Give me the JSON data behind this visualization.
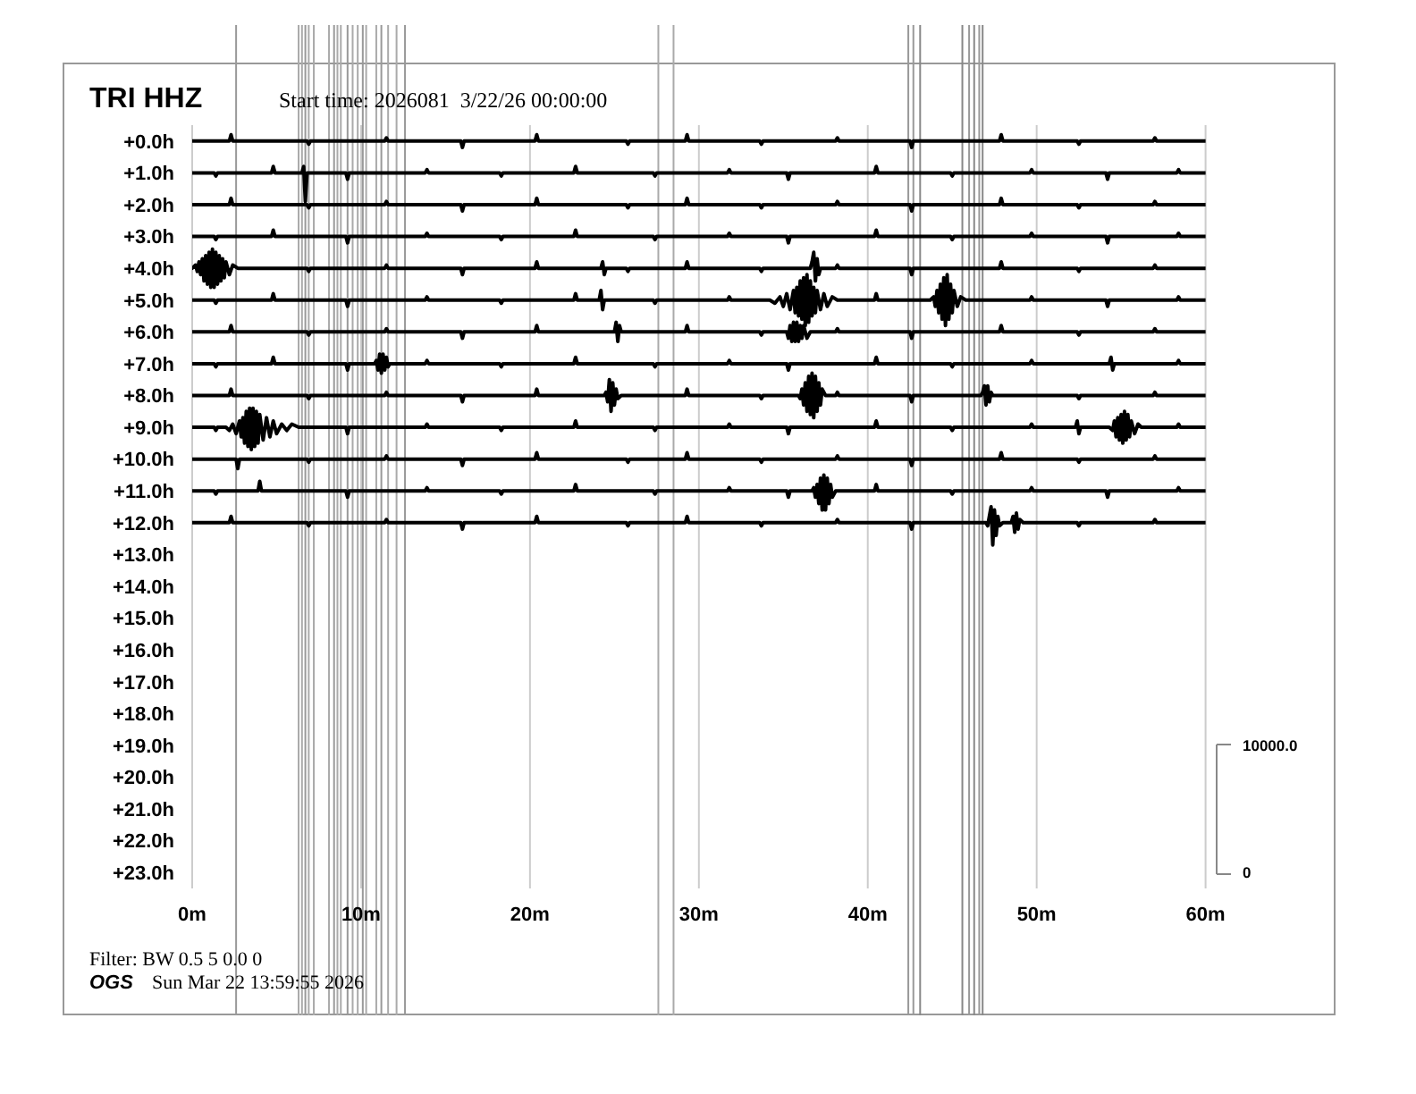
{
  "chart_data": {
    "type": "line",
    "title": "TRI HHZ",
    "subtitle": "Start time: 2026081  3/22/26 00:00:00",
    "xlim": [
      0,
      60
    ],
    "xticks": [
      {
        "value": 0,
        "label": "0m"
      },
      {
        "value": 10,
        "label": "10m"
      },
      {
        "value": 20,
        "label": "20m"
      },
      {
        "value": 30,
        "label": "30m"
      },
      {
        "value": 40,
        "label": "40m"
      },
      {
        "value": 50,
        "label": "50m"
      },
      {
        "value": 60,
        "label": "60m"
      }
    ],
    "ylim": [
      23.5,
      -0.5
    ],
    "yticks": [
      {
        "value": 0,
        "label": "+0.0h"
      },
      {
        "value": 1,
        "label": "+1.0h"
      },
      {
        "value": 2,
        "label": "+2.0h"
      },
      {
        "value": 3,
        "label": "+3.0h"
      },
      {
        "value": 4,
        "label": "+4.0h"
      },
      {
        "value": 5,
        "label": "+5.0h"
      },
      {
        "value": 6,
        "label": "+6.0h"
      },
      {
        "value": 7,
        "label": "+7.0h"
      },
      {
        "value": 8,
        "label": "+8.0h"
      },
      {
        "value": 9,
        "label": "+9.0h"
      },
      {
        "value": 10,
        "label": "+10.0h"
      },
      {
        "value": 11,
        "label": "+11.0h"
      },
      {
        "value": 12,
        "label": "+12.0h"
      },
      {
        "value": 13,
        "label": "+13.0h"
      },
      {
        "value": 14,
        "label": "+14.0h"
      },
      {
        "value": 15,
        "label": "+15.0h"
      },
      {
        "value": 16,
        "label": "+16.0h"
      },
      {
        "value": 17,
        "label": "+17.0h"
      },
      {
        "value": 18,
        "label": "+18.0h"
      },
      {
        "value": 19,
        "label": "+19.0h"
      },
      {
        "value": 20,
        "label": "+20.0h"
      },
      {
        "value": 21,
        "label": "+21.0h"
      },
      {
        "value": 22,
        "label": "+22.0h"
      },
      {
        "value": 23,
        "label": "+23.0h"
      }
    ],
    "grid": "x",
    "series": [
      {
        "color": "#000000",
        "x": [
          0,
          2.2,
          2.3,
          2.4,
          6.8,
          6.9,
          7,
          11.4,
          11.5,
          11.6,
          15.9,
          16,
          16.1,
          20.3,
          20.4,
          20.5,
          25.7,
          25.8,
          25.9,
          29.2,
          29.3,
          29.4,
          33.6,
          33.7,
          33.8,
          38.1,
          38.2,
          38.3,
          42.5,
          42.6,
          42.7,
          47.8,
          47.9,
          48,
          52.4,
          52.5,
          52.6,
          56.9,
          57,
          57.1,
          60
        ],
        "values": [
          0,
          0,
          -0.2,
          0,
          0,
          0.1,
          0,
          0,
          -0.1,
          0,
          0,
          0.2,
          0,
          0,
          -0.2,
          0,
          0,
          0.1,
          0,
          0,
          -0.2,
          0,
          0,
          0.1,
          0,
          0,
          -0.1,
          0,
          0,
          0.2,
          0,
          0,
          -0.2,
          0,
          0,
          0.1,
          0,
          0,
          -0.1,
          0,
          0
        ]
      },
      {
        "color": "#000000",
        "x": [
          0,
          1.3,
          1.4,
          1.5,
          4.7,
          4.8,
          4.9,
          6.5,
          6.6,
          6.7,
          6.8,
          9.1,
          9.2,
          9.3,
          13.8,
          13.9,
          14,
          18.2,
          18.3,
          18.4,
          22.6,
          22.7,
          22.8,
          27.3,
          27.4,
          27.5,
          31.7,
          31.8,
          31.9,
          35.2,
          35.3,
          35.4,
          40.4,
          40.5,
          40.6,
          44.9,
          45,
          45.1,
          49.6,
          49.7,
          49.8,
          54.1,
          54.2,
          54.3,
          58.3,
          58.4,
          58.5,
          60
        ],
        "values": [
          1,
          1,
          1.1,
          1,
          1,
          0.8,
          1,
          1,
          0.8,
          1.9,
          1,
          1,
          1.2,
          1,
          1,
          0.9,
          1,
          1,
          1.1,
          1,
          1,
          0.8,
          1,
          1,
          1.1,
          1,
          1,
          0.9,
          1,
          1,
          1.2,
          1,
          1,
          0.8,
          1,
          1,
          1.1,
          1,
          1,
          0.9,
          1,
          1,
          1.2,
          1,
          1,
          0.9,
          1,
          1
        ]
      },
      {
        "color": "#000000",
        "x": [
          0,
          2.2,
          2.3,
          2.4,
          6.8,
          6.9,
          7,
          11.4,
          11.5,
          11.6,
          15.9,
          16,
          16.1,
          20.3,
          20.4,
          20.5,
          25.7,
          25.8,
          25.9,
          29.2,
          29.3,
          29.4,
          33.6,
          33.7,
          33.8,
          38.1,
          38.2,
          38.3,
          42.5,
          42.6,
          42.7,
          47.8,
          47.9,
          48,
          52.4,
          52.5,
          52.6,
          56.9,
          57,
          57.1,
          60
        ],
        "values": [
          2,
          2,
          1.8,
          2,
          2,
          2.1,
          2,
          2,
          1.9,
          2,
          2,
          2.2,
          2,
          2,
          1.8,
          2,
          2,
          2.1,
          2,
          2,
          1.8,
          2,
          2,
          2.1,
          2,
          2,
          1.9,
          2,
          2,
          2.2,
          2,
          2,
          1.8,
          2,
          2,
          2.1,
          2,
          2,
          1.9,
          2,
          2
        ]
      },
      {
        "color": "#000000",
        "x": [
          0,
          1.3,
          1.4,
          1.5,
          4.7,
          4.8,
          4.9,
          9.1,
          9.2,
          9.3,
          13.8,
          13.9,
          14,
          18.2,
          18.3,
          18.4,
          22.6,
          22.7,
          22.8,
          27.3,
          27.4,
          27.5,
          31.7,
          31.8,
          31.9,
          35.2,
          35.3,
          35.4,
          40.4,
          40.5,
          40.6,
          44.9,
          45,
          45.1,
          49.6,
          49.7,
          49.8,
          54.1,
          54.2,
          54.3,
          58.3,
          58.4,
          58.5,
          60
        ],
        "values": [
          3,
          3,
          3.1,
          3,
          3,
          2.8,
          3,
          3,
          3.2,
          3,
          3,
          2.9,
          3,
          3,
          3.1,
          3,
          3,
          2.8,
          3,
          3,
          3.1,
          3,
          3,
          2.9,
          3,
          3,
          3.2,
          3,
          3,
          2.8,
          3,
          3,
          3.1,
          3,
          3,
          2.9,
          3,
          3,
          3.2,
          3,
          3,
          2.9,
          3,
          3
        ]
      },
      {
        "color": "#000000",
        "x": [
          0,
          0.2,
          0.3,
          0.4,
          0.5,
          0.6,
          0.7,
          0.8,
          0.9,
          1,
          1.1,
          1.2,
          1.3,
          1.4,
          1.5,
          1.6,
          1.7,
          1.8,
          1.9,
          2,
          2.2,
          2.4,
          2.7,
          6.8,
          6.9,
          7,
          11.4,
          11.5,
          11.6,
          15.9,
          16,
          16.1,
          20.3,
          20.4,
          20.5,
          24.2,
          24.3,
          24.4,
          24.5,
          25.7,
          25.8,
          25.9,
          29.2,
          29.3,
          29.4,
          33.6,
          33.7,
          33.8,
          36.6,
          36.7,
          36.8,
          36.9,
          37,
          37.1,
          37.2,
          38.1,
          38.2,
          38.3,
          42.5,
          42.6,
          42.7,
          47.8,
          47.9,
          48,
          52.4,
          52.5,
          52.6,
          56.9,
          57,
          57.1,
          60
        ],
        "values": [
          4,
          3.9,
          4.1,
          3.8,
          4.2,
          3.7,
          4.4,
          3.6,
          4.5,
          3.5,
          4.6,
          3.4,
          4.6,
          3.5,
          4.5,
          3.6,
          4.4,
          3.7,
          4.3,
          3.8,
          4.2,
          3.9,
          4,
          4,
          4.1,
          4,
          4,
          3.9,
          4,
          4,
          4.2,
          4,
          4,
          3.8,
          4,
          4,
          3.8,
          4.2,
          4,
          4,
          4.1,
          4,
          4,
          3.8,
          4,
          4,
          4.1,
          4,
          4,
          3.8,
          3.5,
          4.4,
          3.7,
          4.2,
          4,
          4,
          3.9,
          4,
          4,
          4.2,
          4,
          4,
          3.8,
          4,
          4,
          4.1,
          4,
          4,
          3.9,
          4,
          4
        ]
      },
      {
        "color": "#000000",
        "x": [
          0,
          1.3,
          1.4,
          1.5,
          4.7,
          4.8,
          4.9,
          9.1,
          9.2,
          9.3,
          13.8,
          13.9,
          14,
          18.2,
          18.3,
          18.4,
          22.6,
          22.7,
          22.8,
          24.1,
          24.2,
          24.3,
          24.4,
          27.3,
          27.4,
          27.5,
          31.7,
          31.8,
          31.9,
          34.2,
          34.5,
          34.8,
          35,
          35.2,
          35.4,
          35.6,
          35.7,
          35.8,
          35.9,
          36,
          36.1,
          36.2,
          36.3,
          36.4,
          36.5,
          36.6,
          36.7,
          36.8,
          36.9,
          37,
          37.2,
          37.4,
          37.6,
          37.9,
          38.2,
          40.4,
          40.5,
          40.6,
          43.7,
          43.9,
          44,
          44.1,
          44.2,
          44.3,
          44.4,
          44.5,
          44.6,
          44.7,
          44.8,
          44.9,
          45,
          45.1,
          45.3,
          45.5,
          45.8,
          49.6,
          49.7,
          49.8,
          54.1,
          54.2,
          54.3,
          58.3,
          58.4,
          58.5,
          60
        ],
        "values": [
          5,
          5,
          5.1,
          5,
          5,
          4.8,
          5,
          5,
          5.2,
          5,
          5,
          4.9,
          5,
          5,
          5.1,
          5,
          5,
          4.8,
          5,
          5,
          4.7,
          5.3,
          5,
          5,
          5.1,
          5,
          5,
          4.9,
          5,
          5,
          5.1,
          4.9,
          5.2,
          4.8,
          5.3,
          4.7,
          5.4,
          4.6,
          5.5,
          4.4,
          5.6,
          4.3,
          5.8,
          4.2,
          5.7,
          4.4,
          5.5,
          4.6,
          5.4,
          4.7,
          5.3,
          4.8,
          5.2,
          4.9,
          5,
          5,
          4.8,
          5,
          5,
          4.9,
          5.2,
          4.7,
          5.4,
          4.5,
          5.6,
          4.3,
          5.8,
          4.2,
          5.6,
          4.5,
          5.4,
          4.7,
          5.2,
          4.9,
          5,
          5,
          4.9,
          5,
          5,
          5.2,
          5,
          5,
          4.9,
          5,
          5
        ]
      },
      {
        "color": "#000000",
        "x": [
          0,
          2.2,
          2.3,
          2.4,
          6.8,
          6.9,
          7,
          11.4,
          11.5,
          11.6,
          15.9,
          16,
          16.1,
          20.3,
          20.4,
          20.5,
          25,
          25.1,
          25.2,
          25.3,
          25.4,
          29.2,
          29.3,
          29.4,
          33.6,
          33.7,
          33.8,
          35.2,
          35.3,
          35.4,
          35.5,
          35.6,
          35.7,
          35.8,
          35.9,
          36,
          36.1,
          36.2,
          36.4,
          36.6,
          38.1,
          38.2,
          38.3,
          42.5,
          42.6,
          42.7,
          47.8,
          47.9,
          48,
          52.4,
          52.5,
          52.6,
          56.9,
          57,
          57.1,
          60
        ],
        "values": [
          6,
          6,
          5.8,
          6,
          6,
          6.1,
          6,
          6,
          5.9,
          6,
          6,
          6.2,
          6,
          6,
          5.8,
          6,
          6,
          5.7,
          6.3,
          5.8,
          6,
          6,
          5.8,
          6,
          6,
          6.1,
          6,
          6,
          6.2,
          5.8,
          6.3,
          5.7,
          6.3,
          5.7,
          6.3,
          5.8,
          6.2,
          5.8,
          6.2,
          6,
          6,
          5.9,
          6,
          6,
          6.2,
          6,
          6,
          5.8,
          6,
          6,
          6.1,
          6,
          6,
          5.9,
          6,
          6
        ]
      },
      {
        "color": "#000000",
        "x": [
          0,
          1.3,
          1.4,
          1.5,
          4.7,
          4.8,
          4.9,
          9.1,
          9.2,
          9.3,
          10.8,
          10.9,
          11,
          11.1,
          11.2,
          11.3,
          11.4,
          11.5,
          11.6,
          11.7,
          13.8,
          13.9,
          14,
          18.2,
          18.3,
          18.4,
          22.6,
          22.7,
          22.8,
          27.3,
          27.4,
          27.5,
          31.7,
          31.8,
          31.9,
          35.2,
          35.3,
          35.4,
          40.4,
          40.5,
          40.6,
          44.9,
          45,
          45.1,
          49.6,
          49.7,
          49.8,
          54.3,
          54.4,
          54.5,
          54.6,
          58.3,
          58.4,
          58.5,
          60
        ],
        "values": [
          7,
          7,
          7.1,
          7,
          7,
          6.8,
          7,
          7,
          7.2,
          7,
          7,
          6.9,
          7.2,
          6.7,
          7.3,
          6.7,
          7.2,
          6.8,
          7.1,
          7,
          7,
          6.9,
          7,
          7,
          7.1,
          7,
          7,
          6.8,
          7,
          7,
          7.1,
          7,
          7,
          6.9,
          7,
          7,
          7.2,
          7,
          7,
          6.8,
          7,
          7,
          7.1,
          7,
          7,
          6.9,
          7,
          7,
          6.8,
          7.2,
          7,
          7,
          6.9,
          7,
          7
        ]
      },
      {
        "color": "#000000",
        "x": [
          0,
          2.2,
          2.3,
          2.4,
          6.8,
          6.9,
          7,
          11.4,
          11.5,
          11.6,
          15.9,
          16,
          16.1,
          20.3,
          20.4,
          20.5,
          24.4,
          24.5,
          24.6,
          24.7,
          24.8,
          24.9,
          25,
          25.1,
          25.2,
          25.4,
          29.2,
          29.3,
          29.4,
          33.6,
          33.7,
          33.8,
          35.9,
          36,
          36.1,
          36.2,
          36.3,
          36.4,
          36.5,
          36.6,
          36.7,
          36.8,
          36.9,
          37,
          37.1,
          37.2,
          37.3,
          37.5,
          38.1,
          38.2,
          38.3,
          42.5,
          42.6,
          42.7,
          46.7,
          46.8,
          46.9,
          47,
          47.1,
          47.2,
          47.3,
          47.4,
          52.4,
          52.5,
          52.6,
          56.9,
          57,
          57.1,
          60
        ],
        "values": [
          8,
          8,
          7.8,
          8,
          8,
          8.1,
          8,
          8,
          7.9,
          8,
          8,
          8.2,
          8,
          8,
          7.8,
          8,
          8,
          7.9,
          8.2,
          7.5,
          8.5,
          7.6,
          8.3,
          7.8,
          8.1,
          8,
          8,
          7.8,
          8,
          8,
          8.1,
          8,
          8,
          8.1,
          7.8,
          8.3,
          7.6,
          8.5,
          7.4,
          8.6,
          7.3,
          8.7,
          7.4,
          8.5,
          7.6,
          8.3,
          7.8,
          8,
          8,
          7.9,
          8,
          8,
          8.2,
          8,
          8,
          7.9,
          7.7,
          8.3,
          7.7,
          8.2,
          7.9,
          8,
          8,
          8.1,
          8,
          8,
          7.9,
          8,
          8
        ]
      },
      {
        "color": "#000000",
        "x": [
          0,
          1.3,
          1.4,
          1.5,
          2,
          2.2,
          2.4,
          2.6,
          2.8,
          2.9,
          3,
          3.1,
          3.2,
          3.3,
          3.4,
          3.5,
          3.6,
          3.7,
          3.8,
          3.9,
          4,
          4.2,
          4.4,
          4.6,
          4.8,
          5,
          5.3,
          5.6,
          5.9,
          6.3,
          9.1,
          9.2,
          9.3,
          13.8,
          13.9,
          14,
          18.2,
          18.3,
          18.4,
          22.6,
          22.7,
          22.8,
          27.3,
          27.4,
          27.5,
          31.7,
          31.8,
          31.9,
          35.2,
          35.3,
          35.4,
          40.4,
          40.5,
          40.6,
          44.9,
          45,
          45.1,
          49.6,
          49.7,
          49.8,
          52.3,
          52.4,
          52.5,
          52.6,
          54.3,
          54.5,
          54.6,
          54.7,
          54.8,
          54.9,
          55,
          55.1,
          55.2,
          55.3,
          55.4,
          55.5,
          55.6,
          55.8,
          56,
          56.2,
          58.3,
          58.4,
          58.5,
          60
        ],
        "values": [
          9,
          9,
          9.1,
          9,
          9,
          9.1,
          8.9,
          9.2,
          8.8,
          9.3,
          8.7,
          9.5,
          8.5,
          9.6,
          8.4,
          9.7,
          8.4,
          9.6,
          8.5,
          9.5,
          8.6,
          9.4,
          8.7,
          9.3,
          8.8,
          9.2,
          8.9,
          9.1,
          8.9,
          9,
          9,
          9.2,
          9,
          9,
          8.9,
          9,
          9,
          9.1,
          9,
          9,
          8.8,
          9,
          9,
          9.1,
          9,
          9,
          8.9,
          9,
          9,
          9.2,
          9,
          9,
          8.8,
          9,
          9,
          9.1,
          9,
          9,
          8.9,
          9,
          9,
          8.8,
          9.2,
          9,
          9,
          9.1,
          8.8,
          9.3,
          8.7,
          9.4,
          8.6,
          9.5,
          8.5,
          9.4,
          8.6,
          9.3,
          8.8,
          9.2,
          8.9,
          9,
          9,
          8.9,
          9,
          9
        ]
      },
      {
        "color": "#000000",
        "x": [
          0,
          2.6,
          2.7,
          2.8,
          6.8,
          6.9,
          7,
          11.4,
          11.5,
          11.6,
          15.9,
          16,
          16.1,
          20.3,
          20.4,
          20.5,
          25.7,
          25.8,
          25.9,
          29.2,
          29.3,
          29.4,
          33.6,
          33.7,
          33.8,
          38.1,
          38.2,
          38.3,
          42.5,
          42.6,
          42.7,
          47.8,
          47.9,
          48,
          52.4,
          52.5,
          52.6,
          56.9,
          57,
          57.1,
          60
        ],
        "values": [
          10,
          10,
          10.3,
          10,
          10,
          10.1,
          10,
          10,
          9.9,
          10,
          10,
          10.2,
          10,
          10,
          9.8,
          10,
          10,
          10.1,
          10,
          10,
          9.8,
          10,
          10,
          10.1,
          10,
          10,
          9.9,
          10,
          10,
          10.2,
          10,
          10,
          9.8,
          10,
          10,
          10.1,
          10,
          10,
          9.9,
          10,
          10
        ]
      },
      {
        "color": "#000000",
        "x": [
          0,
          1.3,
          1.4,
          1.5,
          3.9,
          4,
          4.1,
          9.1,
          9.2,
          9.3,
          13.8,
          13.9,
          14,
          18.2,
          18.3,
          18.4,
          22.6,
          22.7,
          22.8,
          27.3,
          27.4,
          27.5,
          31.7,
          31.8,
          31.9,
          35.2,
          35.3,
          35.4,
          36.7,
          36.8,
          36.9,
          37,
          37.1,
          37.2,
          37.3,
          37.4,
          37.5,
          37.6,
          37.7,
          37.8,
          37.9,
          38.1,
          40.4,
          40.5,
          40.6,
          44.9,
          45,
          45.1,
          49.6,
          49.7,
          49.8,
          54.1,
          54.2,
          54.3,
          58.3,
          58.4,
          58.5,
          60
        ],
        "values": [
          11,
          11,
          11.1,
          11,
          11,
          10.7,
          11,
          11,
          11.2,
          11,
          11,
          10.9,
          11,
          11,
          11.1,
          11,
          11,
          10.8,
          11,
          11,
          11.1,
          11,
          11,
          10.9,
          11,
          11,
          11.2,
          11,
          11,
          10.9,
          11.2,
          10.8,
          11.4,
          10.6,
          11.6,
          10.5,
          11.6,
          10.6,
          11.4,
          10.8,
          11.2,
          11,
          11,
          10.8,
          11,
          11,
          11.1,
          11,
          11,
          10.9,
          11,
          11,
          11.2,
          11,
          11,
          10.9,
          11,
          11
        ]
      },
      {
        "color": "#000000",
        "x": [
          0,
          2.2,
          2.3,
          2.4,
          6.8,
          6.9,
          7,
          11.4,
          11.5,
          11.6,
          15.9,
          16,
          16.1,
          20.3,
          20.4,
          20.5,
          25.7,
          25.8,
          25.9,
          29.2,
          29.3,
          29.4,
          33.6,
          33.7,
          33.8,
          38.1,
          38.2,
          38.3,
          42.5,
          42.6,
          42.7,
          47,
          47.1,
          47.2,
          47.3,
          47.4,
          47.5,
          47.6,
          47.7,
          47.8,
          48,
          48.5,
          48.6,
          48.7,
          48.8,
          48.9,
          49,
          49.2,
          52.4,
          52.5,
          52.6,
          56.9,
          57,
          57.1,
          60
        ],
        "values": [
          12,
          12,
          11.8,
          12,
          12,
          12.1,
          12,
          12,
          11.9,
          12,
          12,
          12.2,
          12,
          12,
          11.8,
          12,
          12,
          12.1,
          12,
          12,
          11.8,
          12,
          12,
          12.1,
          12,
          12,
          11.9,
          12,
          12,
          12.2,
          12,
          12,
          12.1,
          11.8,
          11.5,
          12.7,
          11.6,
          12.4,
          11.8,
          12.1,
          12,
          12,
          11.8,
          12.3,
          11.7,
          12.2,
          11.9,
          12,
          12,
          12.1,
          12,
          12,
          11.9,
          12,
          12
        ]
      }
    ],
    "ref_lines": [
      {
        "axis": "x",
        "value": 2.6,
        "color": "#999999"
      },
      {
        "axis": "x",
        "value": 6.3,
        "color": "#aaaaaa"
      },
      {
        "axis": "x",
        "value": 6.5,
        "color": "#aaaaaa"
      },
      {
        "axis": "x",
        "value": 6.7,
        "color": "#999999"
      },
      {
        "axis": "x",
        "value": 6.9,
        "color": "#aaaaaa"
      },
      {
        "axis": "x",
        "value": 7.2,
        "color": "#aaaaaa"
      },
      {
        "axis": "x",
        "value": 8.1,
        "color": "#aaaaaa"
      },
      {
        "axis": "x",
        "value": 8.4,
        "color": "#999999"
      },
      {
        "axis": "x",
        "value": 8.6,
        "color": "#aaaaaa"
      },
      {
        "axis": "x",
        "value": 8.8,
        "color": "#aaaaaa"
      },
      {
        "axis": "x",
        "value": 9.2,
        "color": "#999999"
      },
      {
        "axis": "x",
        "value": 9.5,
        "color": "#aaaaaa"
      },
      {
        "axis": "x",
        "value": 9.8,
        "color": "#aaaaaa"
      },
      {
        "axis": "x",
        "value": 10.1,
        "color": "#999999"
      },
      {
        "axis": "x",
        "value": 10.3,
        "color": "#aaaaaa"
      },
      {
        "axis": "x",
        "value": 10.9,
        "color": "#aaaaaa"
      },
      {
        "axis": "x",
        "value": 11.2,
        "color": "#999999"
      },
      {
        "axis": "x",
        "value": 11.6,
        "color": "#aaaaaa"
      },
      {
        "axis": "x",
        "value": 12.1,
        "color": "#aaaaaa"
      },
      {
        "axis": "x",
        "value": 12.6,
        "color": "#999999"
      },
      {
        "axis": "x",
        "value": 27.6,
        "color": "#aaaaaa"
      },
      {
        "axis": "x",
        "value": 28.5,
        "color": "#aaaaaa"
      },
      {
        "axis": "x",
        "value": 42.4,
        "color": "#999999"
      },
      {
        "axis": "x",
        "value": 42.7,
        "color": "#999999"
      },
      {
        "axis": "x",
        "value": 43.1,
        "color": "#888888"
      },
      {
        "axis": "x",
        "value": 45.6,
        "color": "#888888"
      },
      {
        "axis": "x",
        "value": 46,
        "color": "#999999"
      },
      {
        "axis": "x",
        "value": 46.3,
        "color": "#888888"
      },
      {
        "axis": "x",
        "value": 46.6,
        "color": "#999999"
      },
      {
        "axis": "x",
        "value": 46.8,
        "color": "#888888"
      }
    ],
    "annotations": [
      "Filter: BW 0.5 5 0.0 0",
      "OGS",
      "Sun Mar 22 13:59:55 2026",
      "10000.0",
      "0"
    ]
  }
}
